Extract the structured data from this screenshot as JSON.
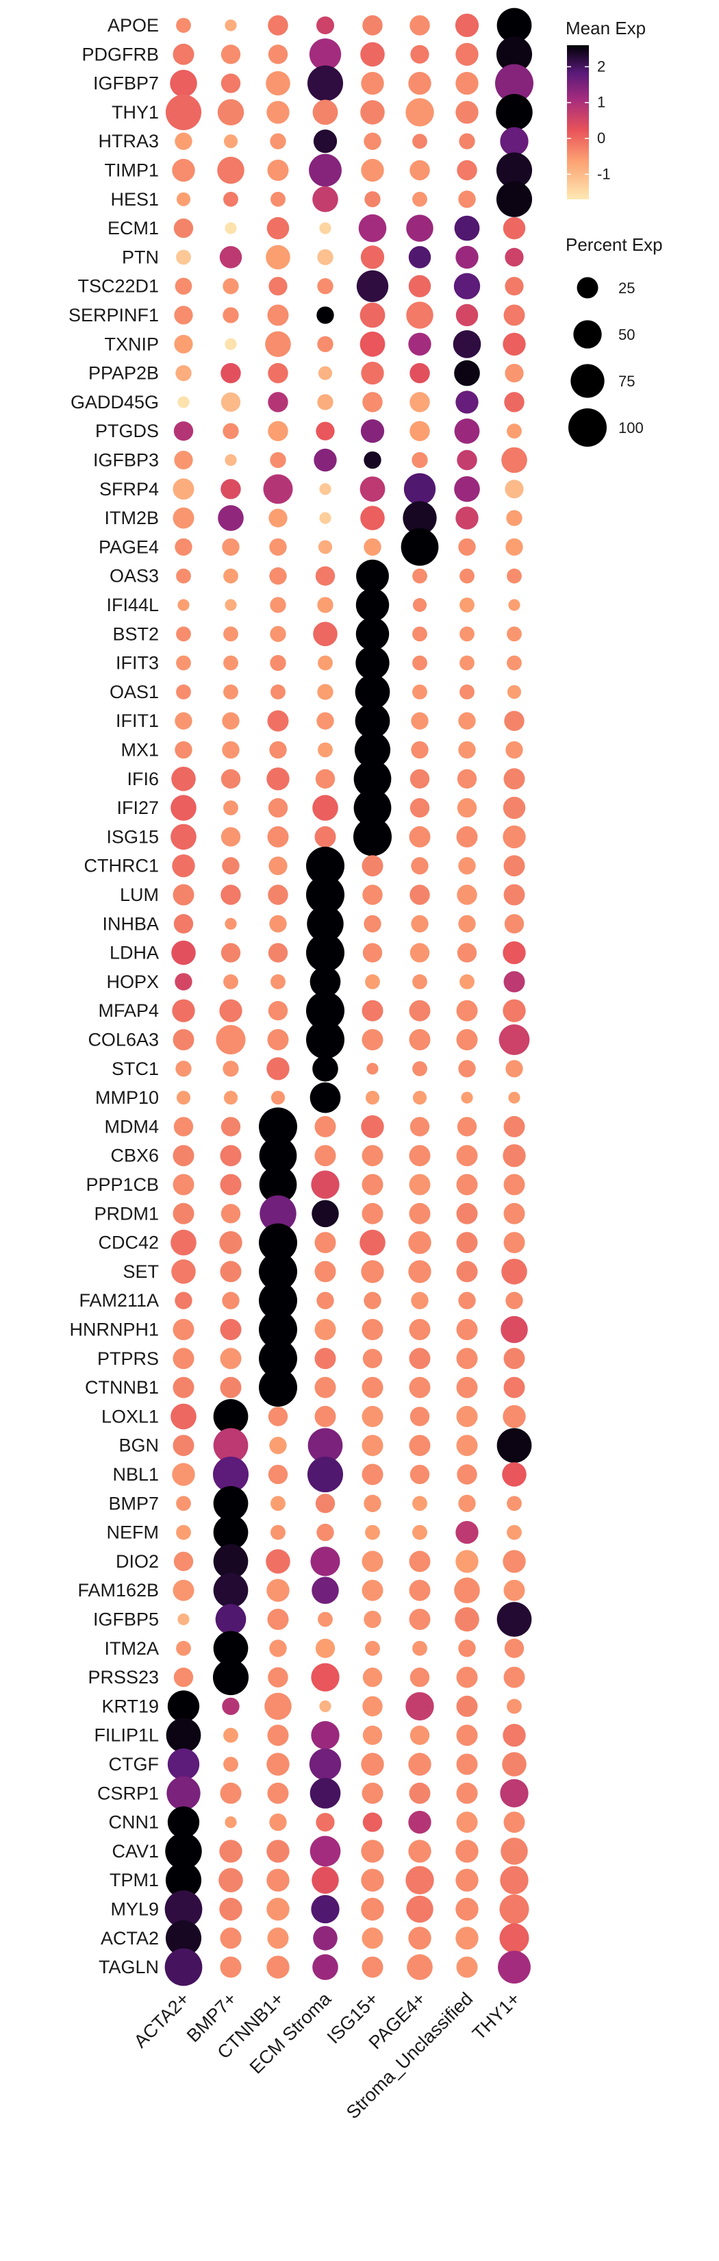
{
  "chart_data": {
    "type": "dotplot",
    "genes": [
      "APOE",
      "PDGFRB",
      "IGFBP7",
      "THY1",
      "HTRA3",
      "TIMP1",
      "HES1",
      "ECM1",
      "PTN",
      "TSC22D1",
      "SERPINF1",
      "TXNIP",
      "PPAP2B",
      "GADD45G",
      "PTGDS",
      "IGFBP3",
      "SFRP4",
      "ITM2B",
      "PAGE4",
      "OAS3",
      "IFI44L",
      "BST2",
      "IFIT3",
      "OAS1",
      "IFIT1",
      "MX1",
      "IFI6",
      "IFI27",
      "ISG15",
      "CTHRC1",
      "LUM",
      "INHBA",
      "LDHA",
      "HOPX",
      "MFAP4",
      "COL6A3",
      "STC1",
      "MMP10",
      "MDM4",
      "CBX6",
      "PPP1CB",
      "PRDM1",
      "CDC42",
      "SET",
      "FAM211A",
      "HNRNPH1",
      "PTPRS",
      "CTNNB1",
      "LOXL1",
      "BGN",
      "NBL1",
      "BMP7",
      "NEFM",
      "DIO2",
      "FAM162B",
      "IGFBP5",
      "ITM2A",
      "PRSS23",
      "KRT19",
      "FILIP1L",
      "CTGF",
      "CSRP1",
      "CNN1",
      "CAV1",
      "TPM1",
      "MYL9",
      "ACTA2",
      "TAGLN"
    ],
    "clusters": [
      "ACTA2+",
      "BMP7+",
      "CTNNB1+",
      "ECM Stroma",
      "ISG15+",
      "PAGE4+",
      "Stroma_Unclassified",
      "THY1+"
    ],
    "mean_exp": [
      [
        -0.4,
        -0.8,
        -0.2,
        0.6,
        -0.3,
        -0.4,
        0.0,
        2.6
      ],
      [
        -0.2,
        -0.4,
        -0.4,
        1.1,
        0.0,
        -0.2,
        -0.2,
        2.5
      ],
      [
        0.1,
        -0.2,
        -0.5,
        2.2,
        -0.4,
        -0.4,
        -0.4,
        1.4
      ],
      [
        0.0,
        -0.3,
        -0.5,
        -0.3,
        -0.3,
        -0.5,
        -0.3,
        2.6
      ],
      [
        -0.6,
        -0.7,
        -0.5,
        2.3,
        -0.4,
        -0.3,
        -0.3,
        1.7
      ],
      [
        -0.4,
        -0.2,
        -0.5,
        1.4,
        -0.5,
        -0.5,
        -0.2,
        2.4
      ],
      [
        -0.6,
        -0.2,
        -0.4,
        0.7,
        -0.3,
        -0.5,
        -0.4,
        2.5
      ],
      [
        -0.3,
        -1.6,
        -0.1,
        -1.4,
        1.1,
        1.2,
        1.9,
        0.0
      ],
      [
        -1.2,
        0.8,
        -0.6,
        -1.1,
        0.0,
        1.9,
        1.2,
        0.6
      ],
      [
        -0.4,
        -0.5,
        -0.2,
        -0.4,
        2.2,
        0.0,
        1.8,
        -0.2
      ],
      [
        -0.4,
        -0.4,
        -0.4,
        2.6,
        0.0,
        -0.2,
        0.5,
        -0.2
      ],
      [
        -0.6,
        -1.6,
        -0.4,
        -0.4,
        0.2,
        1.1,
        2.2,
        0.1
      ],
      [
        -0.8,
        0.3,
        -0.1,
        -0.9,
        -0.1,
        0.3,
        2.5,
        -0.5
      ],
      [
        -1.6,
        -1.0,
        0.9,
        -0.8,
        -0.4,
        -0.7,
        1.7,
        0.0
      ],
      [
        0.9,
        -0.4,
        -0.6,
        0.2,
        1.4,
        -0.6,
        1.2,
        -0.6
      ],
      [
        -0.5,
        -1.0,
        -0.4,
        1.4,
        2.4,
        -0.4,
        0.7,
        -0.2
      ],
      [
        -0.8,
        0.4,
        0.9,
        -1.2,
        0.8,
        1.9,
        1.2,
        -1.0
      ],
      [
        -0.5,
        1.3,
        -0.6,
        -1.3,
        0.1,
        2.4,
        0.6,
        -0.6
      ],
      [
        -0.4,
        -0.5,
        -0.5,
        -0.8,
        -0.6,
        2.6,
        -0.4,
        -0.6
      ],
      [
        -0.4,
        -0.6,
        -0.4,
        -0.2,
        2.6,
        -0.4,
        -0.4,
        -0.4
      ],
      [
        -0.6,
        -0.8,
        -0.5,
        -0.6,
        2.6,
        -0.4,
        -0.6,
        -0.6
      ],
      [
        -0.4,
        -0.5,
        -0.5,
        0.0,
        2.6,
        -0.4,
        -0.5,
        -0.5
      ],
      [
        -0.5,
        -0.5,
        -0.4,
        -0.6,
        2.6,
        -0.4,
        -0.5,
        -0.5
      ],
      [
        -0.4,
        -0.5,
        -0.4,
        -0.6,
        2.6,
        -0.5,
        -0.4,
        -0.6
      ],
      [
        -0.5,
        -0.5,
        -0.1,
        -0.5,
        2.6,
        -0.5,
        -0.5,
        -0.3
      ],
      [
        -0.4,
        -0.5,
        -0.4,
        -0.6,
        2.6,
        -0.4,
        -0.5,
        -0.5
      ],
      [
        0.0,
        -0.3,
        -0.1,
        -0.4,
        2.6,
        -0.3,
        -0.4,
        -0.3
      ],
      [
        0.1,
        -0.5,
        -0.4,
        0.1,
        2.6,
        -0.3,
        -0.5,
        -0.3
      ],
      [
        0.0,
        -0.5,
        -0.4,
        -0.2,
        2.6,
        -0.4,
        -0.4,
        -0.4
      ],
      [
        -0.1,
        -0.3,
        -0.5,
        2.6,
        -0.3,
        -0.4,
        -0.5,
        -0.3
      ],
      [
        -0.3,
        -0.2,
        -0.3,
        2.6,
        -0.4,
        -0.3,
        -0.5,
        -0.3
      ],
      [
        -0.2,
        -0.5,
        -0.5,
        2.6,
        -0.4,
        -0.5,
        -0.5,
        -0.4
      ],
      [
        0.3,
        -0.3,
        -0.3,
        2.6,
        -0.4,
        -0.5,
        -0.4,
        0.2
      ],
      [
        0.5,
        -0.5,
        -0.5,
        2.6,
        -0.6,
        -0.5,
        -0.6,
        0.8
      ],
      [
        -0.1,
        -0.2,
        -0.4,
        2.6,
        -0.2,
        -0.3,
        -0.4,
        -0.2
      ],
      [
        -0.3,
        -0.4,
        -0.4,
        2.6,
        -0.4,
        -0.4,
        -0.4,
        0.6
      ],
      [
        -0.5,
        -0.5,
        -0.1,
        2.6,
        -0.4,
        -0.4,
        -0.4,
        -0.5
      ],
      [
        -0.6,
        -0.6,
        -0.5,
        2.6,
        -0.6,
        -0.6,
        -0.6,
        -0.6
      ],
      [
        -0.4,
        -0.3,
        2.6,
        -0.4,
        -0.1,
        -0.4,
        -0.4,
        -0.3
      ],
      [
        -0.3,
        -0.2,
        2.6,
        -0.4,
        -0.4,
        -0.4,
        -0.4,
        -0.3
      ],
      [
        -0.4,
        -0.2,
        2.6,
        0.4,
        -0.4,
        -0.5,
        -0.4,
        -0.4
      ],
      [
        -0.3,
        -0.4,
        1.6,
        2.4,
        -0.4,
        -0.4,
        -0.3,
        -0.4
      ],
      [
        -0.1,
        -0.3,
        2.6,
        -0.4,
        0.0,
        -0.4,
        -0.3,
        -0.4
      ],
      [
        -0.2,
        -0.3,
        2.6,
        -0.4,
        -0.4,
        -0.4,
        -0.3,
        -0.1
      ],
      [
        -0.2,
        -0.4,
        2.6,
        -0.4,
        -0.4,
        -0.5,
        -0.4,
        -0.4
      ],
      [
        -0.4,
        -0.1,
        2.6,
        -0.5,
        -0.4,
        -0.4,
        -0.4,
        0.4
      ],
      [
        -0.4,
        -0.5,
        2.6,
        -0.2,
        -0.4,
        -0.3,
        -0.4,
        -0.3
      ],
      [
        -0.3,
        -0.3,
        2.6,
        -0.4,
        -0.4,
        -0.4,
        -0.4,
        -0.2
      ],
      [
        0.0,
        2.6,
        -0.4,
        -0.4,
        -0.5,
        -0.4,
        -0.5,
        -0.4
      ],
      [
        -0.3,
        0.8,
        -0.6,
        1.5,
        -0.5,
        -0.4,
        -0.5,
        2.5
      ],
      [
        -0.5,
        1.8,
        -0.4,
        1.9,
        -0.4,
        -0.4,
        -0.4,
        0.2
      ],
      [
        -0.5,
        2.6,
        -0.6,
        -0.3,
        -0.5,
        -0.6,
        -0.5,
        -0.5
      ],
      [
        -0.6,
        2.6,
        -0.5,
        -0.4,
        -0.6,
        -0.6,
        0.8,
        -0.6
      ],
      [
        -0.4,
        2.4,
        -0.1,
        1.2,
        -0.5,
        -0.4,
        -0.6,
        -0.4
      ],
      [
        -0.5,
        2.3,
        -0.5,
        1.6,
        -0.5,
        -0.4,
        -0.4,
        -0.5
      ],
      [
        -0.9,
        1.9,
        -0.4,
        -0.5,
        -0.5,
        -0.4,
        -0.3,
        2.3
      ],
      [
        -0.5,
        2.6,
        -0.5,
        -0.6,
        -0.5,
        -0.5,
        -0.4,
        -0.4
      ],
      [
        -0.4,
        2.6,
        -0.4,
        0.2,
        -0.5,
        -0.4,
        -0.4,
        -0.4
      ],
      [
        2.6,
        0.9,
        -0.4,
        -0.9,
        -0.5,
        0.7,
        -0.3,
        -0.5
      ],
      [
        2.5,
        -0.6,
        -0.4,
        1.2,
        -0.5,
        -0.5,
        -0.4,
        -0.2
      ],
      [
        1.8,
        -0.5,
        -0.4,
        1.6,
        -0.4,
        -0.4,
        -0.4,
        -0.3
      ],
      [
        1.5,
        -0.4,
        -0.4,
        2.0,
        -0.4,
        -0.3,
        -0.4,
        0.8
      ],
      [
        2.6,
        -0.6,
        -0.5,
        -0.1,
        0.1,
        0.9,
        -0.5,
        -0.4
      ],
      [
        2.6,
        -0.3,
        -0.3,
        1.1,
        -0.4,
        -0.4,
        -0.4,
        -0.3
      ],
      [
        2.6,
        -0.3,
        -0.4,
        0.3,
        -0.4,
        -0.2,
        -0.4,
        -0.2
      ],
      [
        2.2,
        -0.3,
        -0.5,
        1.9,
        -0.4,
        -0.2,
        -0.4,
        -0.2
      ],
      [
        2.4,
        -0.4,
        -0.5,
        1.3,
        -0.5,
        -0.4,
        -0.5,
        0.1
      ],
      [
        2.0,
        -0.4,
        -0.4,
        1.2,
        -0.4,
        -0.4,
        -0.5,
        1.1
      ]
    ],
    "pct_exp": [
      [
        10,
        5,
        22,
        16,
        22,
        22,
        32,
        80
      ],
      [
        25,
        20,
        20,
        65,
        35,
        18,
        30,
        85
      ],
      [
        45,
        20,
        35,
        85,
        30,
        30,
        30,
        100
      ],
      [
        85,
        42,
        30,
        38,
        35,
        50,
        30,
        90
      ],
      [
        15,
        8,
        12,
        32,
        15,
        10,
        12,
        50
      ],
      [
        30,
        45,
        25,
        70,
        30,
        22,
        22,
        85
      ],
      [
        8,
        10,
        10,
        40,
        12,
        10,
        15,
        85
      ],
      [
        20,
        5,
        28,
        5,
        48,
        45,
        38,
        28
      ],
      [
        10,
        28,
        35,
        12,
        32,
        28,
        30,
        18
      ],
      [
        14,
        12,
        18,
        12,
        65,
        28,
        42,
        18
      ],
      [
        18,
        12,
        25,
        15,
        38,
        45,
        28,
        25
      ],
      [
        18,
        5,
        40,
        12,
        38,
        30,
        48,
        30
      ],
      [
        12,
        22,
        22,
        8,
        30,
        22,
        40,
        18
      ],
      [
        5,
        20,
        22,
        12,
        22,
        22,
        30,
        22
      ],
      [
        20,
        12,
        22,
        18,
        32,
        22,
        38,
        10
      ],
      [
        18,
        5,
        12,
        30,
        15,
        12,
        22,
        40
      ],
      [
        25,
        22,
        55,
        5,
        38,
        65,
        40,
        18
      ],
      [
        25,
        40,
        18,
        5,
        35,
        75,
        30,
        12
      ],
      [
        15,
        15,
        15,
        8,
        15,
        95,
        15,
        15
      ],
      [
        10,
        10,
        15,
        20,
        70,
        10,
        10,
        10
      ],
      [
        5,
        5,
        12,
        12,
        72,
        8,
        10,
        5
      ],
      [
        10,
        10,
        12,
        35,
        72,
        10,
        10,
        10
      ],
      [
        10,
        10,
        12,
        10,
        75,
        10,
        10,
        10
      ],
      [
        10,
        10,
        10,
        12,
        80,
        10,
        10,
        8
      ],
      [
        15,
        15,
        25,
        15,
        80,
        15,
        15,
        22
      ],
      [
        15,
        15,
        15,
        10,
        85,
        15,
        15,
        15
      ],
      [
        35,
        20,
        30,
        20,
        95,
        20,
        20,
        25
      ],
      [
        40,
        10,
        20,
        40,
        95,
        20,
        20,
        28
      ],
      [
        40,
        20,
        25,
        25,
        100,
        25,
        25,
        30
      ],
      [
        30,
        15,
        18,
        100,
        25,
        15,
        15,
        25
      ],
      [
        25,
        22,
        22,
        100,
        22,
        22,
        22,
        25
      ],
      [
        20,
        5,
        15,
        90,
        15,
        15,
        15,
        20
      ],
      [
        35,
        20,
        20,
        100,
        20,
        20,
        20,
        30
      ],
      [
        15,
        10,
        10,
        60,
        10,
        10,
        10,
        25
      ],
      [
        30,
        30,
        20,
        100,
        25,
        25,
        25,
        30
      ],
      [
        25,
        55,
        25,
        100,
        25,
        25,
        25,
        60
      ],
      [
        12,
        12,
        30,
        40,
        5,
        10,
        15,
        15
      ],
      [
        8,
        8,
        8,
        60,
        8,
        8,
        5,
        5
      ],
      [
        20,
        20,
        100,
        25,
        30,
        20,
        20,
        25
      ],
      [
        25,
        25,
        95,
        25,
        25,
        25,
        25,
        30
      ],
      [
        25,
        25,
        95,
        50,
        25,
        25,
        25,
        25
      ],
      [
        25,
        20,
        90,
        45,
        25,
        25,
        25,
        25
      ],
      [
        40,
        30,
        100,
        25,
        40,
        30,
        25,
        25
      ],
      [
        35,
        25,
        100,
        25,
        30,
        30,
        25,
        40
      ],
      [
        15,
        15,
        100,
        15,
        15,
        15,
        15,
        15
      ],
      [
        25,
        25,
        100,
        25,
        25,
        25,
        25,
        45
      ],
      [
        25,
        25,
        100,
        25,
        20,
        25,
        25,
        25
      ],
      [
        25,
        25,
        100,
        25,
        25,
        25,
        25,
        25
      ],
      [
        40,
        80,
        20,
        25,
        25,
        20,
        25,
        30
      ],
      [
        25,
        80,
        15,
        80,
        25,
        25,
        25,
        80
      ],
      [
        30,
        85,
        20,
        85,
        25,
        20,
        22,
        35
      ],
      [
        10,
        80,
        10,
        20,
        15,
        10,
        15,
        10
      ],
      [
        10,
        80,
        10,
        15,
        10,
        10,
        30,
        10
      ],
      [
        20,
        80,
        35,
        55,
        25,
        25,
        30,
        30
      ],
      [
        25,
        80,
        30,
        45,
        25,
        25,
        40,
        25
      ],
      [
        5,
        60,
        25,
        10,
        15,
        25,
        35,
        80
      ],
      [
        10,
        80,
        15,
        20,
        10,
        10,
        15,
        20
      ],
      [
        20,
        85,
        22,
        50,
        20,
        20,
        25,
        25
      ],
      [
        65,
        15,
        45,
        5,
        22,
        50,
        25,
        10
      ],
      [
        80,
        10,
        25,
        50,
        20,
        20,
        25,
        30
      ],
      [
        65,
        10,
        30,
        65,
        30,
        30,
        25,
        35
      ],
      [
        75,
        25,
        25,
        60,
        25,
        25,
        25,
        50
      ],
      [
        65,
        5,
        15,
        18,
        20,
        30,
        25,
        25
      ],
      [
        90,
        30,
        30,
        60,
        30,
        30,
        30,
        45
      ],
      [
        85,
        35,
        30,
        45,
        30,
        50,
        30,
        50
      ],
      [
        95,
        30,
        30,
        50,
        30,
        45,
        30,
        55
      ],
      [
        85,
        25,
        25,
        35,
        25,
        30,
        30,
        55
      ],
      [
        95,
        25,
        30,
        40,
        25,
        40,
        25,
        70
      ]
    ],
    "legend": {
      "color_title": "Mean Exp",
      "color_ticks": [
        2,
        1,
        0,
        -1
      ],
      "color_range": [
        -1.7,
        2.6
      ],
      "size_title": "Percent Exp",
      "size_ticks": [
        25,
        50,
        75,
        100
      ]
    },
    "colors": {
      "low": "#fde9b3",
      "mid1": "#fca172",
      "mid2": "#e8535a",
      "mid3": "#a52c7e",
      "mid4": "#5a1a7a",
      "high": "#000004"
    },
    "xlabel": "",
    "ylabel": ""
  }
}
